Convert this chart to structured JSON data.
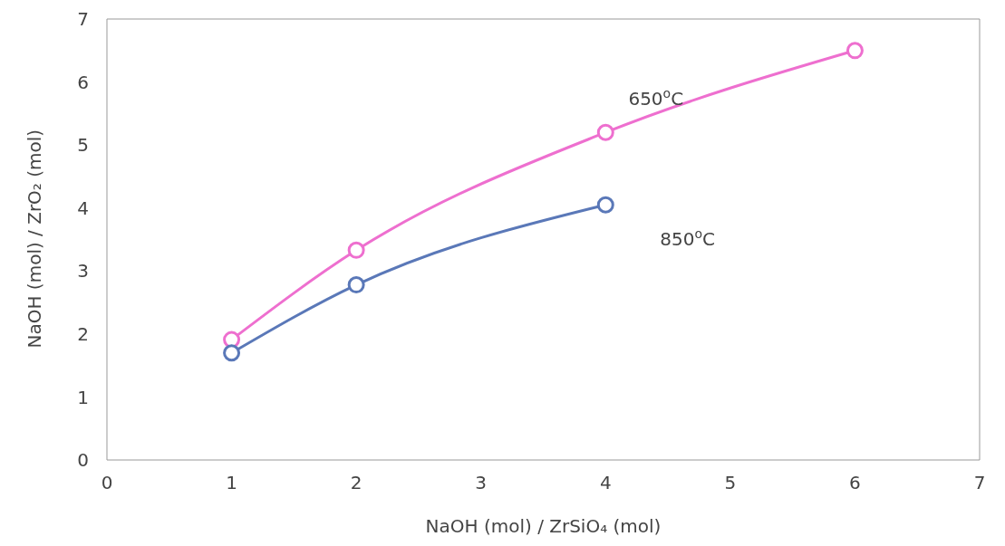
{
  "chart_data": {
    "type": "line",
    "xlabel": "NaOH (mol) / ZrSiO₄ (mol)",
    "ylabel": "NaOH (mol) / ZrO₂ (mol)",
    "x": [
      1,
      2,
      4,
      6
    ],
    "series": [
      {
        "name": "650$^{o}$C",
        "color": "#ee6fcf",
        "values": [
          1.91,
          3.33,
          5.2,
          6.5
        ]
      },
      {
        "name": "850$^{o}$C",
        "color": "#5a78b8",
        "values": [
          1.7,
          2.78,
          4.05,
          null
        ]
      }
    ],
    "xlim": [
      0,
      7
    ],
    "xticks": [
      0,
      1,
      2,
      3,
      4,
      5,
      6,
      7
    ],
    "ylim": [
      0,
      7
    ],
    "yticks": [
      0,
      1,
      2,
      3,
      4,
      5,
      6,
      7
    ],
    "grid": false,
    "legend": false,
    "marker": "circle",
    "line_style": "solid"
  }
}
